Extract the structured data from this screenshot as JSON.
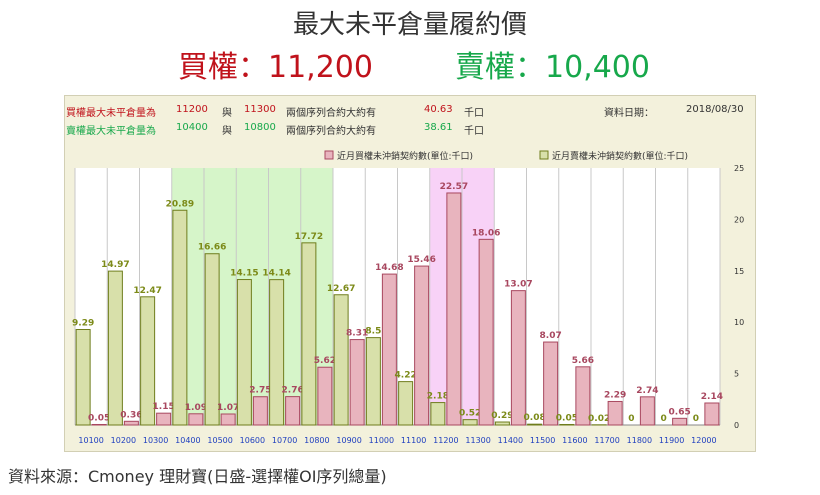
{
  "title": "最大未平倉量履約價",
  "call_headline": "買權：11,200",
  "put_headline": "賣權：10,400",
  "info": {
    "call_label": "買權最大未平倉量為",
    "call_strike1": "11200",
    "and1": "與",
    "call_strike2": "11300",
    "call_desc": "兩個序列合約大約有",
    "call_amount": "40.63",
    "unit1": "千口",
    "date_label": "資料日期：",
    "date_value": "2018/08/30",
    "put_label": "賣權最大未平倉量為",
    "put_strike1": "10400",
    "and2": "與",
    "put_strike2": "10800",
    "put_desc": "兩個序列合約大約有",
    "put_amount": "38.61",
    "unit2": "千口"
  },
  "colors": {
    "call_fill": "#e8b4be",
    "call_stroke": "#a8475f",
    "call_label": "#a8475f",
    "put_fill": "#d8e0aa",
    "put_stroke": "#6f7d1c",
    "put_label": "#7c8a18",
    "green_zone": "#d6f5c9",
    "pink_zone": "#f8d2f7",
    "red_text": "#c0121b",
    "green_text": "#17a84b",
    "tick_blue": "#1f3fbf"
  },
  "chart_data": {
    "type": "bar",
    "categories": [
      "10100",
      "10200",
      "10300",
      "10400",
      "10500",
      "10600",
      "10700",
      "10800",
      "10900",
      "11000",
      "11100",
      "11200",
      "11300",
      "11400",
      "11500",
      "11600",
      "11700",
      "11800",
      "11900",
      "12000"
    ],
    "series": [
      {
        "name": "近月賣權未沖銷契約數(單位:千口)",
        "values": [
          9.29,
          14.97,
          12.47,
          20.89,
          16.66,
          14.15,
          14.14,
          17.72,
          12.67,
          8.5,
          4.22,
          2.18,
          0.52,
          0.29,
          0.08,
          0.05,
          0.02,
          0,
          0,
          0
        ]
      },
      {
        "name": "近月買權未沖銷契約數(單位:千口)",
        "values": [
          0.05,
          0.36,
          1.15,
          1.09,
          1.07,
          2.75,
          2.76,
          5.62,
          8.31,
          14.68,
          15.46,
          22.57,
          18.06,
          13.07,
          8.07,
          5.66,
          2.29,
          2.74,
          0.65,
          2.14
        ]
      }
    ],
    "y_ticks": [
      "0",
      "5",
      "10",
      "15",
      "20",
      "25"
    ],
    "ylim": [
      0,
      25
    ],
    "highlight_put": [
      "10400",
      "10800"
    ],
    "highlight_call": [
      "11200",
      "11300"
    ],
    "legend_position": "top-right"
  },
  "footer": "資料來源：Cmoney 理財寶(日盛-選擇權OI序列總量)"
}
